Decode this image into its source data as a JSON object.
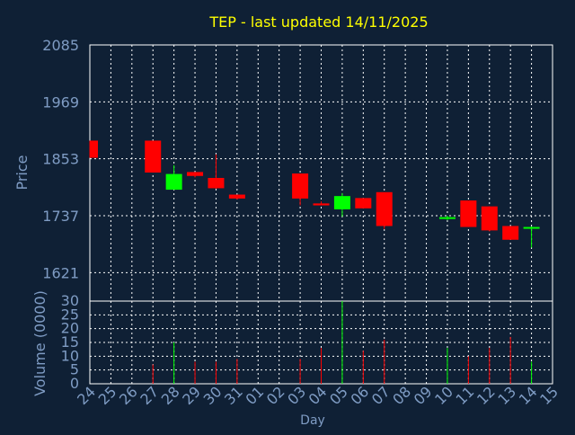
{
  "chart_data": {
    "type": "candlestick",
    "title": "TEP - last updated 14/11/2025",
    "xlabel": "Day",
    "price_panel": {
      "ylabel": "Price",
      "ylim": [
        1563,
        2085
      ],
      "yticks": [
        1621,
        1737,
        1853,
        1969,
        2085
      ],
      "grid": true
    },
    "volume_panel": {
      "ylabel": "Volume (0000)",
      "ylim": [
        0,
        30
      ],
      "yticks": [
        0,
        5,
        10,
        15,
        20,
        25,
        30
      ],
      "grid": true
    },
    "x_tick_labels": [
      "24",
      "25",
      "26",
      "27",
      "28",
      "29",
      "30",
      "31",
      "01",
      "02",
      "03",
      "04",
      "05",
      "06",
      "07",
      "08",
      "09",
      "10",
      "11",
      "12",
      "13",
      "14",
      "15"
    ],
    "candles": [
      {
        "day": "24",
        "open": 1890,
        "high": 1890,
        "low": 1855,
        "close": 1855,
        "volume": 0
      },
      {
        "day": "27",
        "open": 1890,
        "high": 1890,
        "low": 1825,
        "close": 1825,
        "volume": 7
      },
      {
        "day": "28",
        "open": 1790,
        "high": 1840,
        "low": 1790,
        "close": 1822,
        "volume": 15
      },
      {
        "day": "29",
        "open": 1826,
        "high": 1826,
        "low": 1815,
        "close": 1818,
        "volume": 8
      },
      {
        "day": "30",
        "open": 1814,
        "high": 1862,
        "low": 1792,
        "close": 1793,
        "volume": 8
      },
      {
        "day": "31",
        "open": 1780,
        "high": 1780,
        "low": 1770,
        "close": 1772,
        "volume": 9
      },
      {
        "day": "03",
        "open": 1823,
        "high": 1823,
        "low": 1758,
        "close": 1772,
        "volume": 9
      },
      {
        "day": "04",
        "open": 1762,
        "high": 1766,
        "low": 1758,
        "close": 1758,
        "volume": 13
      },
      {
        "day": "05",
        "open": 1750,
        "high": 1783,
        "low": 1735,
        "close": 1777,
        "volume": 30
      },
      {
        "day": "06",
        "open": 1773,
        "high": 1773,
        "low": 1752,
        "close": 1752,
        "volume": 12
      },
      {
        "day": "07",
        "open": 1785,
        "high": 1785,
        "low": 1710,
        "close": 1716,
        "volume": 16
      },
      {
        "day": "10",
        "open": 1732,
        "high": 1737,
        "low": 1728,
        "close": 1734,
        "volume": 13
      },
      {
        "day": "11",
        "open": 1768,
        "high": 1768,
        "low": 1714,
        "close": 1714,
        "volume": 10
      },
      {
        "day": "12",
        "open": 1756,
        "high": 1756,
        "low": 1705,
        "close": 1707,
        "volume": 13
      },
      {
        "day": "13",
        "open": 1716,
        "high": 1716,
        "low": 1688,
        "close": 1688,
        "volume": 17
      },
      {
        "day": "14",
        "open": 1712,
        "high": 1715,
        "low": 1672,
        "close": 1714,
        "volume": 8
      }
    ],
    "colors": {
      "background": "#0f2035",
      "up": "#00ff00",
      "down": "#ff0000",
      "title": "#ffff00",
      "axis_text": "#7f9cc4",
      "grid": "#ffffff"
    }
  }
}
